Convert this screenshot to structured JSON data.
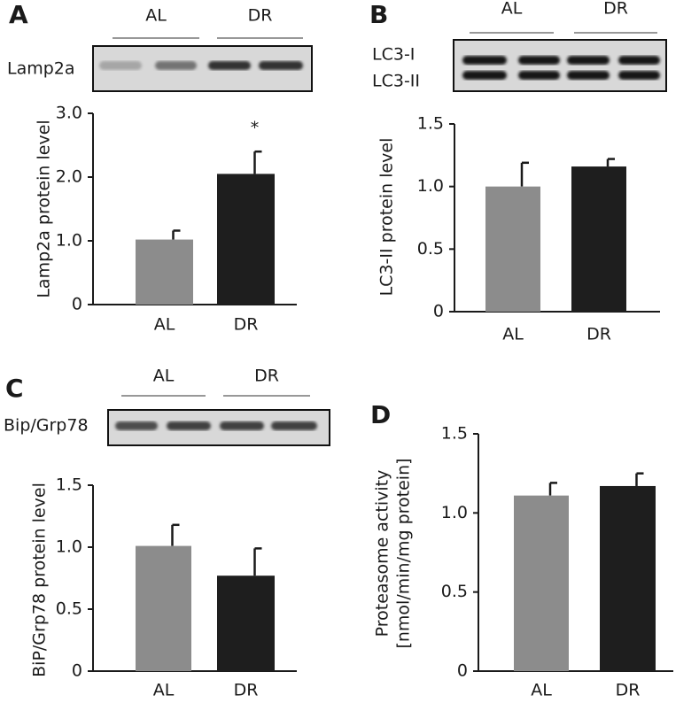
{
  "chart_data": [
    {
      "type": "bar",
      "panel": "A",
      "blot_groups": [
        "AL",
        "DR"
      ],
      "blot_labels": [
        "Lamp2a"
      ],
      "ylabel": [
        "Lamp2a protein level"
      ],
      "categories": [
        "AL",
        "DR"
      ],
      "values": [
        1.02,
        2.05
      ],
      "errors": [
        0.14,
        0.35
      ],
      "colors": [
        "#8c8c8c",
        "#1e1e1e"
      ],
      "annotations": [
        null,
        "*"
      ],
      "ylim": [
        0,
        3
      ],
      "yticks": [
        0,
        {
          "value": 1,
          "label": "1.0"
        },
        {
          "value": 2,
          "label": "2.0"
        },
        {
          "value": 3,
          "label": "3.0"
        }
      ]
    },
    {
      "type": "bar",
      "panel": "B",
      "blot_groups": [
        "AL",
        "DR"
      ],
      "blot_labels": [
        "LC3-I",
        "LC3-II"
      ],
      "ylabel": [
        "LC3-II protein level"
      ],
      "categories": [
        "AL",
        "DR"
      ],
      "values": [
        1.0,
        1.16
      ],
      "errors": [
        0.19,
        0.06
      ],
      "colors": [
        "#8c8c8c",
        "#1e1e1e"
      ],
      "ylim": [
        0,
        1.5
      ],
      "yticks": [
        0,
        0.5,
        {
          "value": 1,
          "label": "1.0"
        },
        1.5
      ]
    },
    {
      "type": "bar",
      "panel": "C",
      "blot_groups": [
        "AL",
        "DR"
      ],
      "blot_labels": [
        "Bip/Grp78"
      ],
      "ylabel": [
        "BiP/Grp78 protein level"
      ],
      "categories": [
        "AL",
        "DR"
      ],
      "values": [
        1.01,
        0.77
      ],
      "errors": [
        0.17,
        0.22
      ],
      "colors": [
        "#8c8c8c",
        "#1e1e1e"
      ],
      "ylim": [
        0,
        1.5
      ],
      "yticks": [
        0,
        0.5,
        {
          "value": 1,
          "label": "1.0"
        },
        1.5
      ]
    },
    {
      "type": "bar",
      "panel": "D",
      "ylabel": [
        "Proteasome activity",
        "[nmol/min/mg protein]"
      ],
      "categories": [
        "AL",
        "DR"
      ],
      "values": [
        1.11,
        1.17
      ],
      "errors": [
        0.08,
        0.08
      ],
      "colors": [
        "#8c8c8c",
        "#1e1e1e"
      ],
      "ylim": [
        0,
        1.5
      ],
      "yticks": [
        0,
        0.5,
        {
          "value": 1,
          "label": "1.0"
        },
        1.5
      ]
    }
  ]
}
